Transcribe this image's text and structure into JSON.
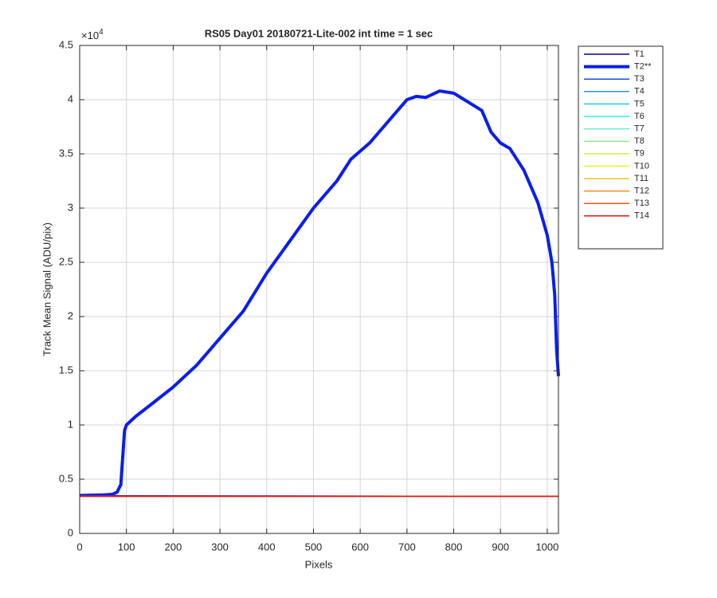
{
  "chart_data": {
    "type": "line",
    "title": "RS05 Day01 20180721-Lite-002 int time = 1 sec",
    "xlabel": "Pixels",
    "ylabel": "Track Mean Signal (ADU/pix)",
    "y_multiplier": {
      "base": "×10",
      "exponent": "4"
    },
    "xlim": [
      0,
      1024
    ],
    "xticks": [
      0,
      100,
      200,
      300,
      400,
      500,
      600,
      700,
      800,
      900,
      1000
    ],
    "ylim": [
      0,
      45000
    ],
    "yticks": [
      {
        "value": 0,
        "label": "0"
      },
      {
        "value": 5000,
        "label": "0.5"
      },
      {
        "value": 10000,
        "label": "1"
      },
      {
        "value": 15000,
        "label": "1.5"
      },
      {
        "value": 20000,
        "label": "2"
      },
      {
        "value": 25000,
        "label": "2.5"
      },
      {
        "value": 30000,
        "label": "3"
      },
      {
        "value": 35000,
        "label": "3.5"
      },
      {
        "value": 40000,
        "label": "4"
      },
      {
        "value": 45000,
        "label": "4.5"
      }
    ],
    "grid": true,
    "legend": "outside-top-right",
    "series": [
      {
        "name": "T1",
        "color": "#00008f",
        "linewidth": 1.5,
        "x": [
          1,
          1024
        ],
        "values": [
          3480,
          3420
        ]
      },
      {
        "name": "T2**",
        "color": "#0a1ef0",
        "linewidth": 4,
        "x": [
          1,
          50,
          70,
          80,
          88,
          92,
          96,
          100,
          120,
          150,
          200,
          250,
          300,
          350,
          400,
          450,
          500,
          550,
          580,
          620,
          650,
          680,
          700,
          720,
          740,
          770,
          800,
          830,
          860,
          880,
          900,
          920,
          950,
          980,
          1000,
          1010,
          1016,
          1020,
          1024
        ],
        "values": [
          3500,
          3550,
          3600,
          3800,
          4500,
          7000,
          9500,
          10000,
          10800,
          11800,
          13500,
          15500,
          18000,
          20500,
          24000,
          27000,
          30000,
          32500,
          34500,
          36000,
          37500,
          39000,
          40000,
          40300,
          40200,
          40800,
          40600,
          39800,
          39000,
          37000,
          36000,
          35500,
          33500,
          30500,
          27500,
          25000,
          22000,
          17000,
          14500
        ]
      },
      {
        "name": "T3",
        "color": "#1a4fe0",
        "linewidth": 1.5,
        "x": [
          1,
          1024
        ],
        "values": [
          3430,
          3430
        ]
      },
      {
        "name": "T4",
        "color": "#2a8fe8",
        "linewidth": 1.5,
        "x": [
          1,
          1024
        ],
        "values": [
          3430,
          3430
        ]
      },
      {
        "name": "T5",
        "color": "#22c4f0",
        "linewidth": 1.5,
        "x": [
          1,
          1024
        ],
        "values": [
          3430,
          3430
        ]
      },
      {
        "name": "T6",
        "color": "#33eeee",
        "linewidth": 1.5,
        "x": [
          1,
          1024
        ],
        "values": [
          3430,
          3430
        ]
      },
      {
        "name": "T7",
        "color": "#66eecc",
        "linewidth": 1.5,
        "x": [
          1,
          1024
        ],
        "values": [
          3430,
          3430
        ]
      },
      {
        "name": "T8",
        "color": "#88ee88",
        "linewidth": 1.5,
        "x": [
          1,
          1024
        ],
        "values": [
          3430,
          3430
        ]
      },
      {
        "name": "T9",
        "color": "#ccf055",
        "linewidth": 1.5,
        "x": [
          1,
          1024
        ],
        "values": [
          3430,
          3430
        ]
      },
      {
        "name": "T10",
        "color": "#f5f020",
        "linewidth": 1.5,
        "x": [
          1,
          1024
        ],
        "values": [
          3430,
          3430
        ]
      },
      {
        "name": "T11",
        "color": "#f5c020",
        "linewidth": 1.5,
        "x": [
          1,
          1024
        ],
        "values": [
          3430,
          3430
        ]
      },
      {
        "name": "T12",
        "color": "#f58a20",
        "linewidth": 1.5,
        "x": [
          1,
          1024
        ],
        "values": [
          3430,
          3430
        ]
      },
      {
        "name": "T13",
        "color": "#f25020",
        "linewidth": 1.5,
        "x": [
          1,
          1024
        ],
        "values": [
          3430,
          3430
        ]
      },
      {
        "name": "T14",
        "color": "#e01818",
        "linewidth": 1.5,
        "x": [
          1,
          1024
        ],
        "values": [
          3420,
          3420
        ]
      }
    ]
  }
}
